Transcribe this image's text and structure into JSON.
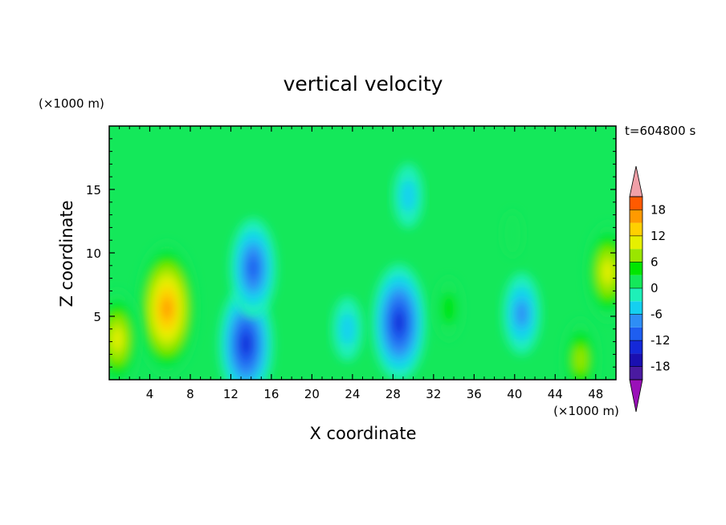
{
  "chart_data": {
    "type": "heatmap",
    "title": "vertical velocity",
    "xlabel": "X coordinate",
    "ylabel": "Z coordinate",
    "x_unit": "(×1000 m)",
    "y_unit": "(×1000 m)",
    "time_label": "t=604800 s",
    "xlim": [
      0,
      50
    ],
    "ylim": [
      0,
      20
    ],
    "x_ticks": [
      "4",
      "8",
      "12",
      "16",
      "20",
      "24",
      "28",
      "32",
      "36",
      "40",
      "44",
      "48"
    ],
    "x_tick_values": [
      4,
      8,
      12,
      16,
      20,
      24,
      28,
      32,
      36,
      40,
      44,
      48
    ],
    "y_ticks": [
      "5",
      "10",
      "15"
    ],
    "y_tick_values": [
      5,
      10,
      15
    ],
    "grid": false,
    "colorbar": {
      "labels": [
        "18",
        "12",
        "6",
        "0",
        "-6",
        "-12",
        "-18"
      ],
      "label_values": [
        18,
        12,
        6,
        0,
        -6,
        -12,
        -18
      ],
      "levels": [
        -21,
        -18,
        -15,
        -12,
        -9,
        -6,
        -3,
        0,
        3,
        6,
        9,
        12,
        15,
        18,
        21
      ],
      "colors": [
        "#4a1aa0",
        "#1a0fb0",
        "#1428d8",
        "#1e5ef0",
        "#2e8ef5",
        "#14d0f0",
        "#1ef0b8",
        "#14e85a",
        "#00e600",
        "#9ae600",
        "#e6f000",
        "#ffd000",
        "#ff9a00",
        "#ff5a00",
        "#e81800"
      ],
      "under_color": "#9a10b8",
      "over_color": "#f0a0a8"
    },
    "features": [
      {
        "x": 5.7,
        "z": 5.6,
        "value": 17
      },
      {
        "x": 0.8,
        "z": 3.2,
        "value": 10
      },
      {
        "x": 46.5,
        "z": 1.6,
        "value": 9
      },
      {
        "x": 49.2,
        "z": 8.5,
        "value": 12
      },
      {
        "x": 13.5,
        "z": 2.8,
        "value": -14
      },
      {
        "x": 14.2,
        "z": 8.8,
        "value": -10
      },
      {
        "x": 28.6,
        "z": 4.5,
        "value": -15
      },
      {
        "x": 40.7,
        "z": 5.2,
        "value": -8
      },
      {
        "x": 39.8,
        "z": 11.5,
        "value": 3
      },
      {
        "x": 33.5,
        "z": 5.6,
        "value": 4
      },
      {
        "x": 29.5,
        "z": 14.5,
        "value": -4
      },
      {
        "x": 23.5,
        "z": 4.0,
        "value": -4
      }
    ]
  }
}
